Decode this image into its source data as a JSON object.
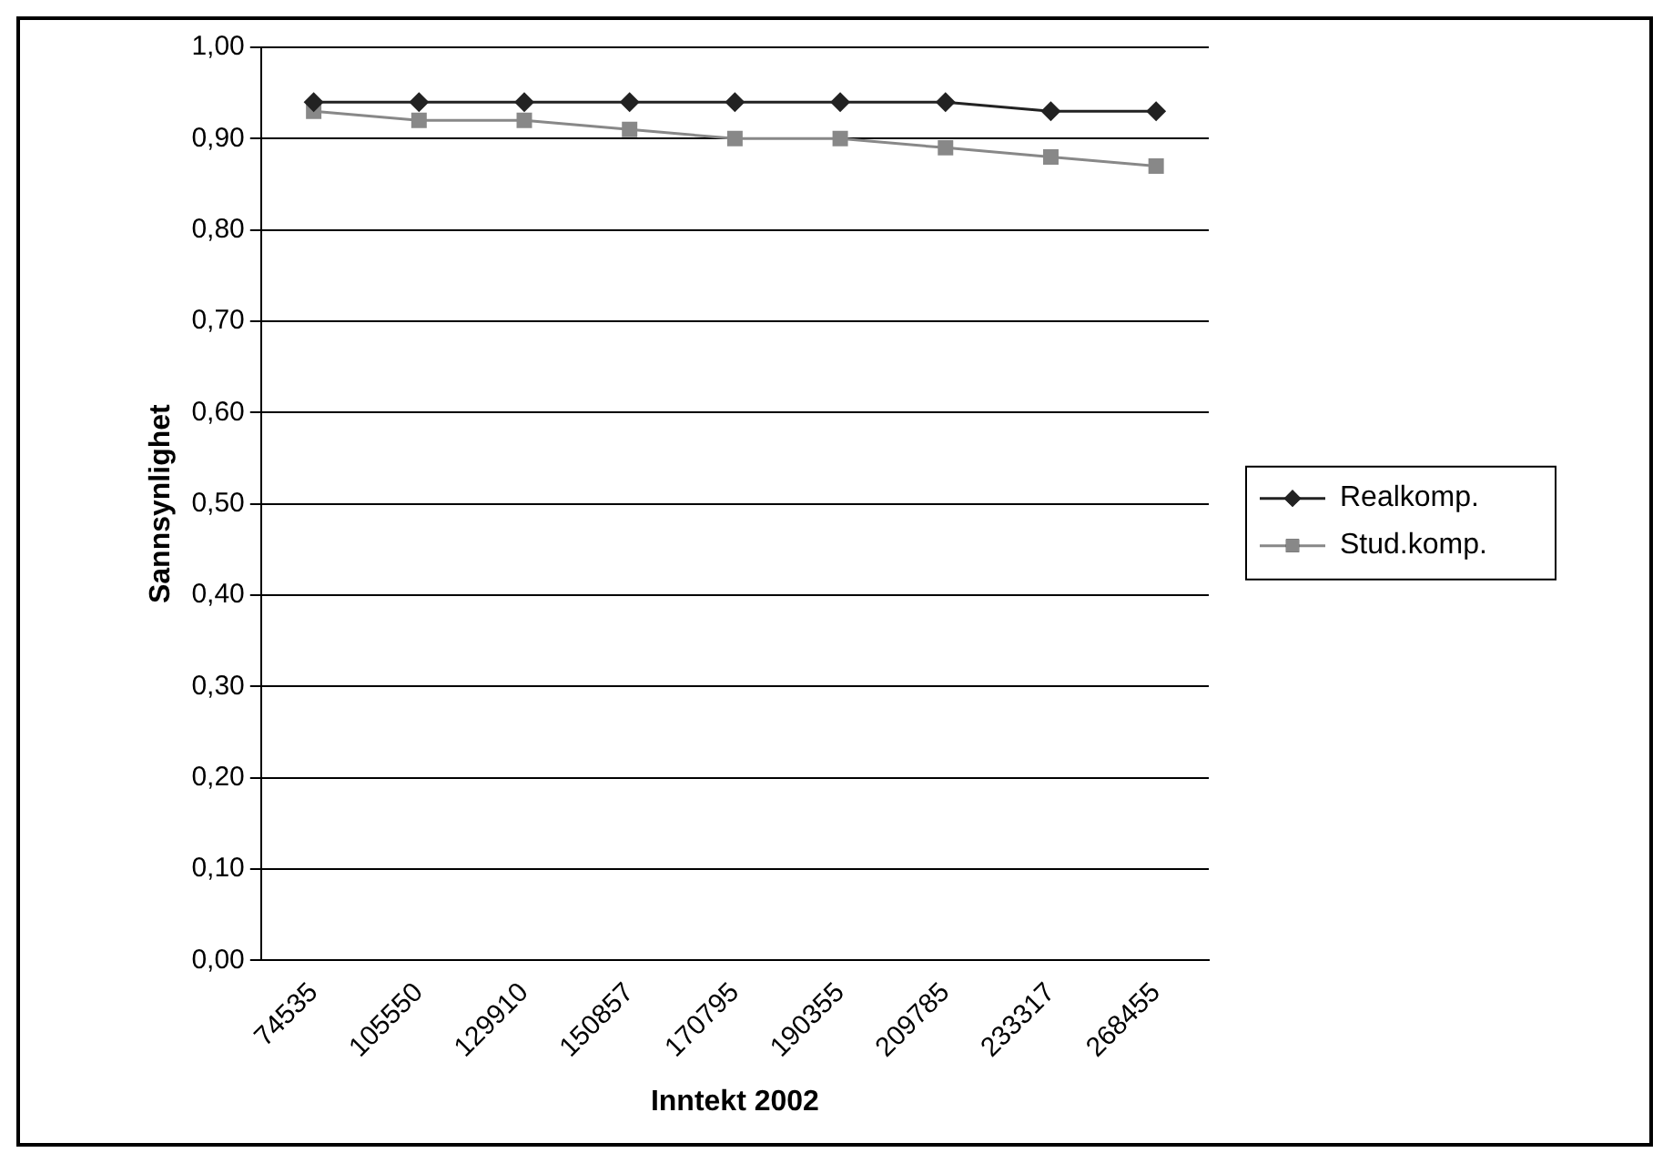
{
  "chart_data": {
    "type": "line",
    "xlabel": "Inntekt 2002",
    "ylabel": "Sannsynlighet",
    "categories": [
      "74535",
      "105550",
      "129910",
      "150857",
      "170795",
      "190355",
      "209785",
      "233317",
      "268455"
    ],
    "series": [
      {
        "name": "Realkomp.",
        "color": "#222222",
        "marker": "diamond",
        "values": [
          0.94,
          0.94,
          0.94,
          0.94,
          0.94,
          0.94,
          0.94,
          0.93,
          0.93
        ]
      },
      {
        "name": "Stud.komp.",
        "color": "#888888",
        "marker": "square",
        "values": [
          0.93,
          0.92,
          0.92,
          0.91,
          0.9,
          0.9,
          0.89,
          0.88,
          0.87
        ]
      }
    ],
    "ylim": [
      0,
      1
    ],
    "yticks": [
      {
        "value": 0,
        "label": "0,00"
      },
      {
        "value": 0.1,
        "label": "0,10"
      },
      {
        "value": 0.2,
        "label": "0,20"
      },
      {
        "value": 0.3,
        "label": "0,30"
      },
      {
        "value": 0.4,
        "label": "0,40"
      },
      {
        "value": 0.5,
        "label": "0,50"
      },
      {
        "value": 0.6,
        "label": "0,60"
      },
      {
        "value": 0.7,
        "label": "0,70"
      },
      {
        "value": 0.8,
        "label": "0,80"
      },
      {
        "value": 0.9,
        "label": "0,90"
      },
      {
        "value": 1,
        "label": "1,00"
      }
    ],
    "grid": "y",
    "legend": "right"
  }
}
